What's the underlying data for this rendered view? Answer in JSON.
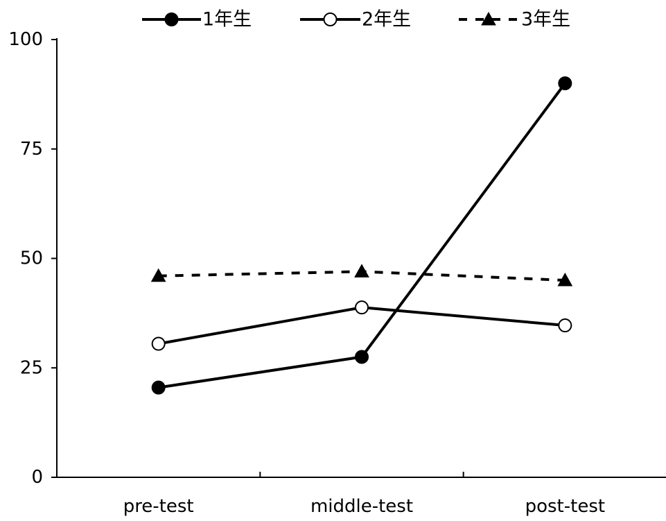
{
  "chart_data": {
    "type": "line",
    "categories": [
      "pre-test",
      "middle-test",
      "post-test"
    ],
    "ylim": [
      0,
      100
    ],
    "yticks": [
      0,
      25,
      50,
      75,
      100
    ],
    "grid": false,
    "legend_position": "top",
    "series": [
      {
        "name": "1年生",
        "values": [
          20.5,
          27.5,
          90
        ],
        "marker": "filled-circle",
        "line": "solid",
        "color": "#000000"
      },
      {
        "name": "2年生",
        "values": [
          30.5,
          38.8,
          34.7
        ],
        "marker": "open-circle",
        "line": "solid",
        "color": "#000000"
      },
      {
        "name": "3年生",
        "values": [
          46,
          47,
          45
        ],
        "marker": "filled-triangle",
        "line": "dashed",
        "color": "#000000"
      }
    ]
  }
}
